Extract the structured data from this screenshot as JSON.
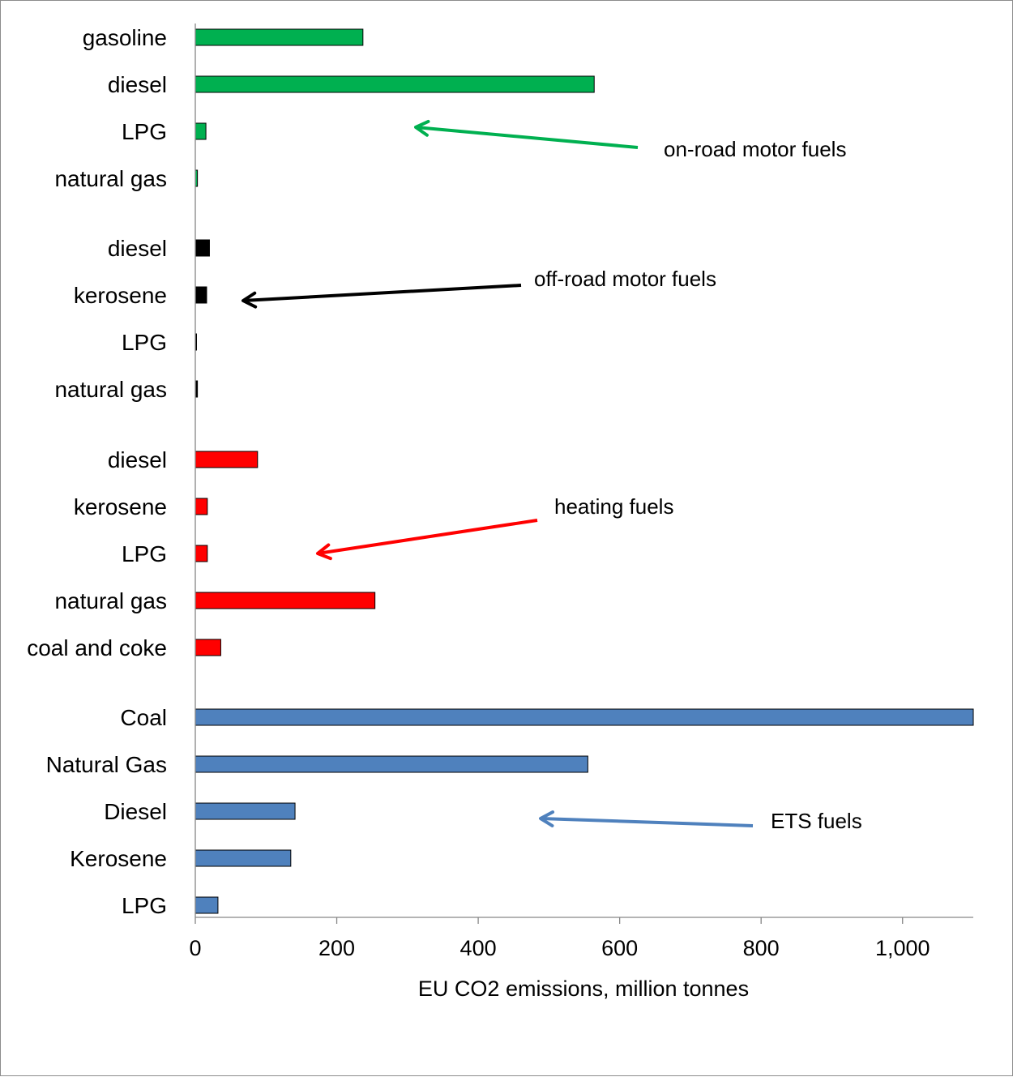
{
  "chart_data": {
    "type": "bar",
    "orientation": "horizontal",
    "xlabel": "EU CO2 emissions,  million tonnes",
    "ylabel": "",
    "xlim": [
      0,
      1100
    ],
    "xticks": [
      0,
      200,
      400,
      600,
      800,
      1000
    ],
    "xtick_labels": [
      "0",
      "200",
      "400",
      "600",
      "800",
      "1,000"
    ],
    "grid": false,
    "legend": "none",
    "series": [
      {
        "name": "on-road motor fuels",
        "color": "#00b050",
        "categories": [
          "gasoline",
          "diesel",
          "LPG",
          "natural gas"
        ],
        "values": [
          237,
          564,
          15,
          3
        ]
      },
      {
        "name": "off-road motor fuels",
        "color": "#000000",
        "categories": [
          "diesel",
          "kerosene",
          "LPG",
          "natural gas"
        ],
        "values": [
          20,
          16,
          1,
          3
        ]
      },
      {
        "name": "heating fuels",
        "color": "#ff0000",
        "categories": [
          "diesel",
          "kerosene",
          "LPG",
          "natural gas",
          "coal and coke"
        ],
        "values": [
          88,
          17,
          17,
          254,
          36
        ]
      },
      {
        "name": "ETS fuels",
        "color": "#4f81bd",
        "categories": [
          "Coal",
          "Natural Gas",
          "Diesel",
          "Kerosene",
          "LPG"
        ],
        "values": [
          1100,
          555,
          141,
          135,
          32
        ]
      }
    ],
    "annotations": [
      {
        "text": "on-road motor fuels",
        "color": "#00b050"
      },
      {
        "text": "off-road motor fuels",
        "color": "#000000"
      },
      {
        "text": "heating fuels",
        "color": "#ff0000"
      },
      {
        "text": "ETS fuels",
        "color": "#4f81bd"
      }
    ]
  }
}
